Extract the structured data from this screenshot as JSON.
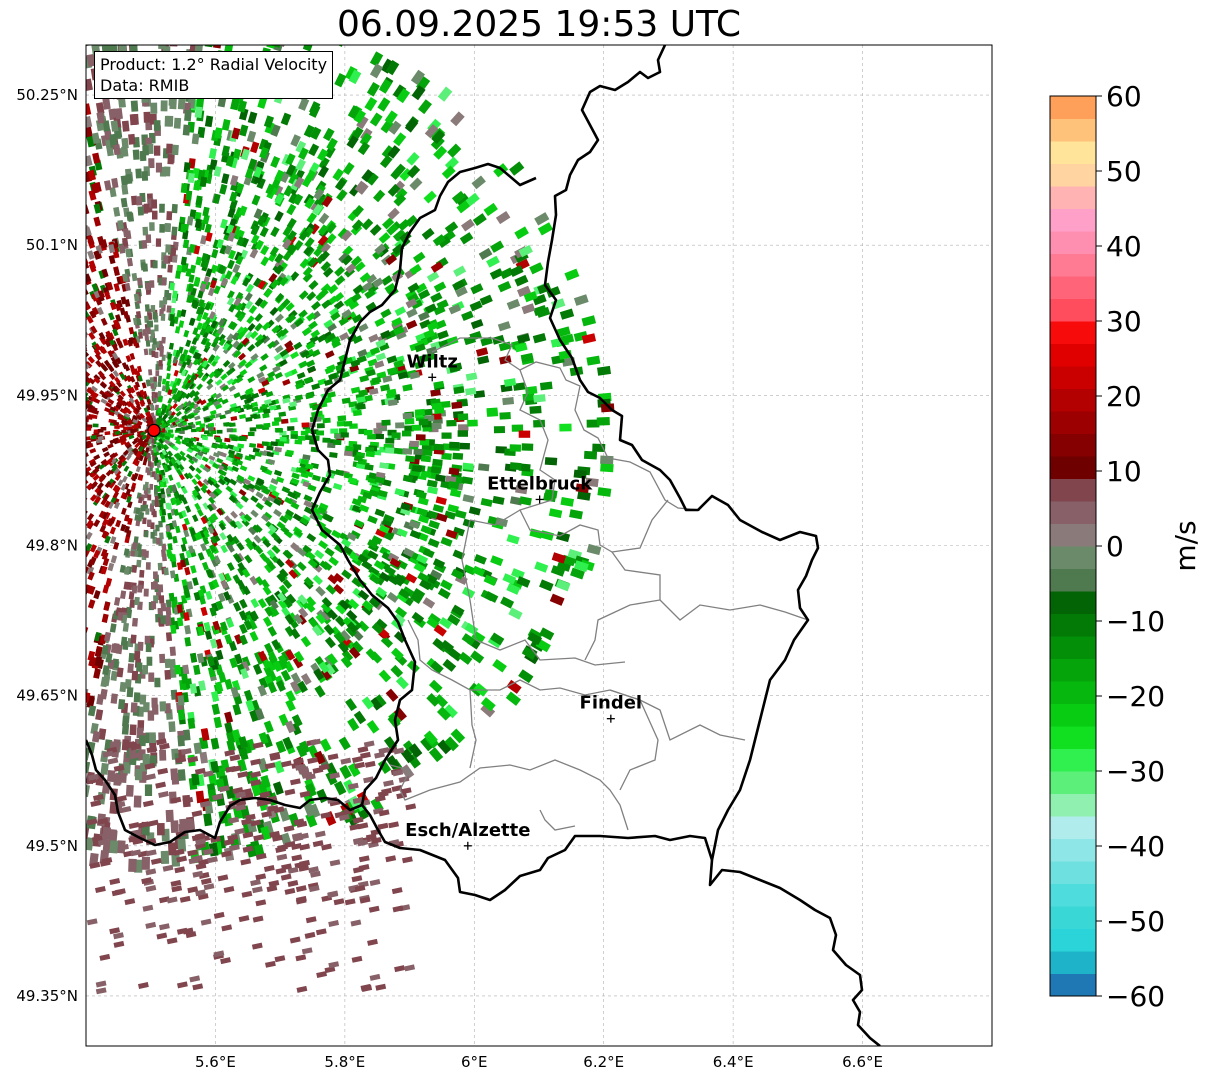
{
  "title": "06.09.2025 19:53 UTC",
  "info": {
    "product": "Product: 1.2° Radial Velocity",
    "data": "Data: RMIB"
  },
  "map": {
    "lon_range": [
      5.4,
      6.8
    ],
    "lat_range": [
      49.3,
      50.3
    ],
    "lat_ticks": [
      {
        "value": 50.25,
        "label": "50.25°N"
      },
      {
        "value": 50.1,
        "label": "50.1°N"
      },
      {
        "value": 49.95,
        "label": "49.95°N"
      },
      {
        "value": 49.8,
        "label": "49.8°N"
      },
      {
        "value": 49.65,
        "label": "49.65°N"
      },
      {
        "value": 49.5,
        "label": "49.5°N"
      },
      {
        "value": 49.35,
        "label": "49.35°N"
      }
    ],
    "lon_ticks": [
      {
        "value": 5.6,
        "label": "5.6°E"
      },
      {
        "value": 5.8,
        "label": "5.8°E"
      },
      {
        "value": 6.0,
        "label": "6°E"
      },
      {
        "value": 6.2,
        "label": "6.2°E"
      },
      {
        "value": 6.4,
        "label": "6.4°E"
      },
      {
        "value": 6.6,
        "label": "6.6°E"
      }
    ],
    "radar_site": {
      "lon": 5.505,
      "lat": 49.915
    },
    "cities": [
      {
        "name": "Wiltz",
        "lon": 5.935,
        "lat": 49.968
      },
      {
        "name": "Ettelbruck",
        "lon": 6.101,
        "lat": 49.846
      },
      {
        "name": "Findel",
        "lon": 6.211,
        "lat": 49.627
      },
      {
        "name": "Esch/Alzette",
        "lon": 5.99,
        "lat": 49.5
      }
    ]
  },
  "colorbar": {
    "label": "m/s",
    "min": -60,
    "max": 60,
    "ticks": [
      {
        "value": 60,
        "label": "60"
      },
      {
        "value": 50,
        "label": "50"
      },
      {
        "value": 40,
        "label": "40"
      },
      {
        "value": 30,
        "label": "30"
      },
      {
        "value": 20,
        "label": "20"
      },
      {
        "value": 10,
        "label": "10"
      },
      {
        "value": 0,
        "label": "0"
      },
      {
        "value": -10,
        "label": "−10"
      },
      {
        "value": -20,
        "label": "−20"
      },
      {
        "value": -30,
        "label": "−30"
      },
      {
        "value": -40,
        "label": "−40"
      },
      {
        "value": -50,
        "label": "−50"
      },
      {
        "value": -60,
        "label": "−60"
      }
    ],
    "bands": [
      {
        "from": -60,
        "to": -57,
        "color": "#1f77b4"
      },
      {
        "from": -57,
        "to": -54,
        "color": "#1fb3c9"
      },
      {
        "from": -54,
        "to": -51,
        "color": "#2bd4d9"
      },
      {
        "from": -51,
        "to": -48,
        "color": "#3ad7d7"
      },
      {
        "from": -48,
        "to": -45,
        "color": "#4fdcdc"
      },
      {
        "from": -45,
        "to": -42,
        "color": "#6fe0e0"
      },
      {
        "from": -42,
        "to": -39,
        "color": "#8fe6e6"
      },
      {
        "from": -39,
        "to": -36,
        "color": "#b0ecec"
      },
      {
        "from": -36,
        "to": -33,
        "color": "#8ff0b0"
      },
      {
        "from": -33,
        "to": -30,
        "color": "#5cf07a"
      },
      {
        "from": -30,
        "to": -27,
        "color": "#30f050"
      },
      {
        "from": -27,
        "to": -24,
        "color": "#10e020"
      },
      {
        "from": -24,
        "to": -21,
        "color": "#08cc12"
      },
      {
        "from": -21,
        "to": -18,
        "color": "#06b80e"
      },
      {
        "from": -18,
        "to": -15,
        "color": "#05a40b"
      },
      {
        "from": -15,
        "to": -12,
        "color": "#048f08"
      },
      {
        "from": -12,
        "to": -9,
        "color": "#037a06"
      },
      {
        "from": -9,
        "to": -6,
        "color": "#036405"
      },
      {
        "from": -6,
        "to": -3,
        "color": "#4f7a4f"
      },
      {
        "from": -3,
        "to": 0,
        "color": "#6a8a6a"
      },
      {
        "from": 0,
        "to": 3,
        "color": "#8a7a7a"
      },
      {
        "from": 3,
        "to": 6,
        "color": "#876068"
      },
      {
        "from": 6,
        "to": 9,
        "color": "#80454d"
      },
      {
        "from": 9,
        "to": 12,
        "color": "#6e0000"
      },
      {
        "from": 12,
        "to": 15,
        "color": "#850000"
      },
      {
        "from": 15,
        "to": 18,
        "color": "#9c0000"
      },
      {
        "from": 18,
        "to": 21,
        "color": "#b30000"
      },
      {
        "from": 21,
        "to": 24,
        "color": "#ca0000"
      },
      {
        "from": 24,
        "to": 27,
        "color": "#e00000"
      },
      {
        "from": 27,
        "to": 30,
        "color": "#f70b0b"
      },
      {
        "from": 30,
        "to": 33,
        "color": "#ff4d5e"
      },
      {
        "from": 33,
        "to": 36,
        "color": "#ff6478"
      },
      {
        "from": 36,
        "to": 39,
        "color": "#ff7b93"
      },
      {
        "from": 39,
        "to": 42,
        "color": "#ff8fb0"
      },
      {
        "from": 42,
        "to": 45,
        "color": "#ffa0c8"
      },
      {
        "from": 45,
        "to": 48,
        "color": "#ffb3b3"
      },
      {
        "from": 48,
        "to": 51,
        "color": "#ffd4a0"
      },
      {
        "from": 51,
        "to": 54,
        "color": "#ffe499"
      },
      {
        "from": 54,
        "to": 57,
        "color": "#ffc27a"
      },
      {
        "from": 57,
        "to": 60,
        "color": "#ffa05a"
      }
    ]
  }
}
